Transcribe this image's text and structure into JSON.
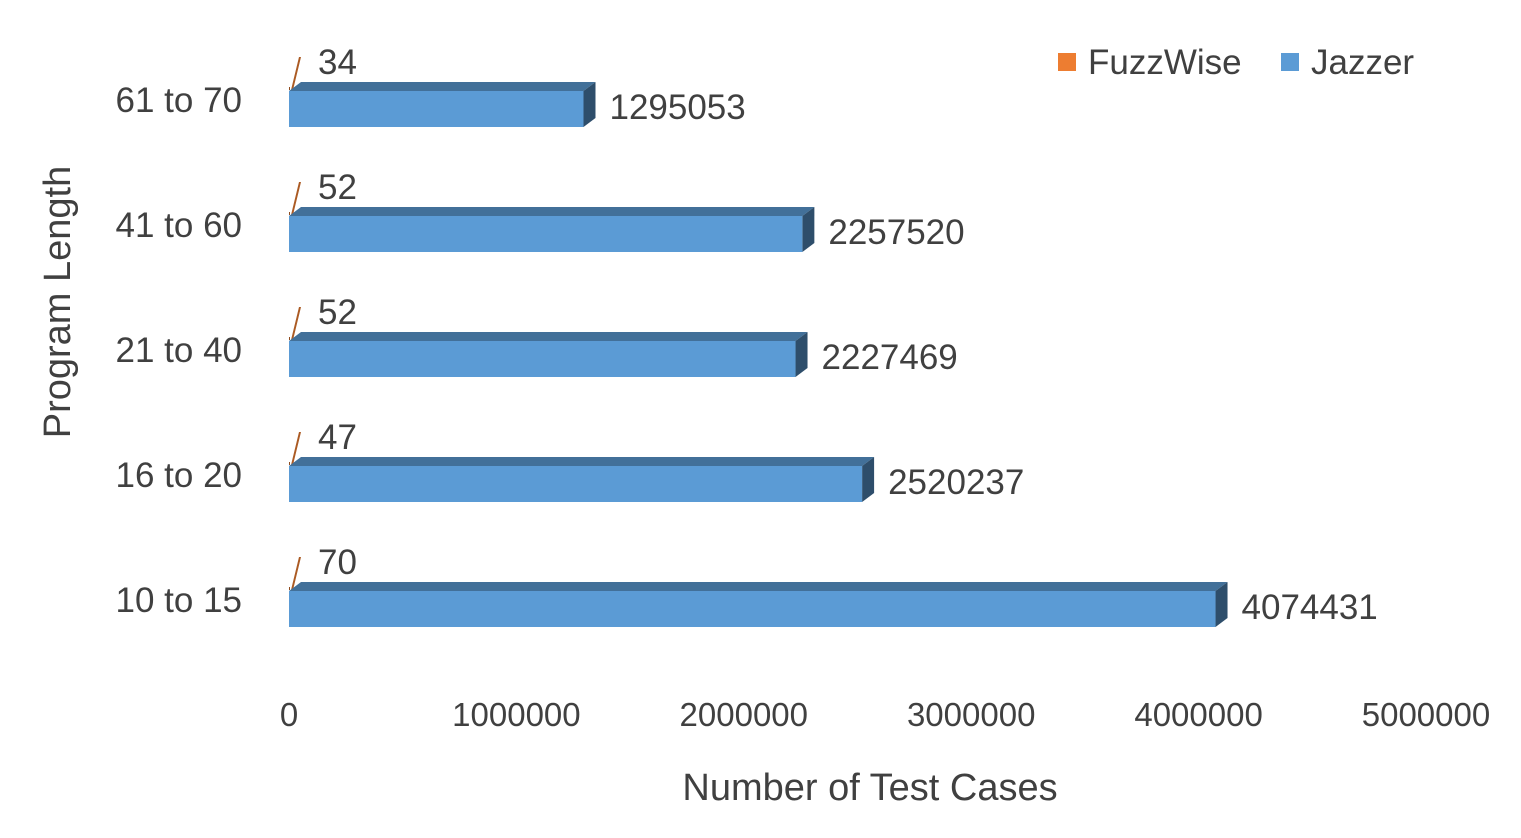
{
  "chart_data": {
    "type": "bar",
    "orientation": "horizontal",
    "style": "3d",
    "title": "",
    "xlabel": "Number of Test Cases",
    "ylabel": "Program Length",
    "categories": [
      "10 to 15",
      "16 to 20",
      "21 to 40",
      "41 to 60",
      "61 to 70"
    ],
    "series": [
      {
        "name": "FuzzWise",
        "values": [
          70,
          47,
          52,
          52,
          34
        ],
        "color": "#ED7D31",
        "value_labels": [
          "70",
          "47",
          "52",
          "52",
          "34"
        ]
      },
      {
        "name": "Jazzer",
        "values": [
          4074431,
          2520237,
          2227469,
          2257520,
          1295053
        ],
        "color": "#5B9BD5",
        "value_labels": [
          "4074431",
          "2520237",
          "2227469",
          "2257520",
          "1295053"
        ]
      }
    ],
    "xlim": [
      0,
      5000000
    ],
    "x_ticks": [
      "0",
      "1000000",
      "2000000",
      "3000000",
      "4000000",
      "5000000"
    ],
    "grid": false,
    "legend_position": "top-right"
  }
}
